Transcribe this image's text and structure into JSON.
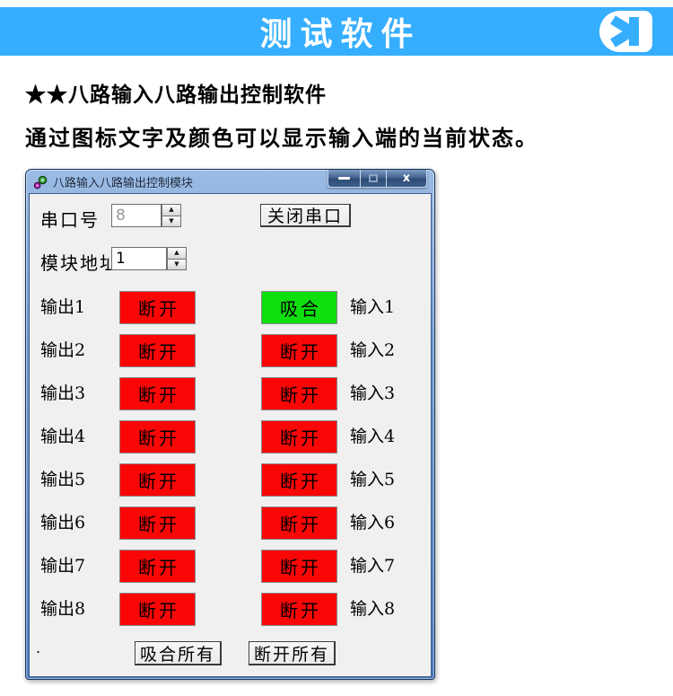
{
  "colors": {
    "header_bg": "#35AEFE",
    "state_on": "#0FDE0F",
    "state_off": "#F90707"
  },
  "header": {
    "title": "测试软件",
    "logo_icon": "mirrored-K-badge"
  },
  "intro": {
    "line1": "★★八路输入八路输出控制软件",
    "line2": "通过图标文字及颜色可以显示输入端的当前状态。"
  },
  "window": {
    "title": "八路输入八路输出控制模块",
    "controls": {
      "minimize": "—",
      "maximize": "□",
      "close": "x"
    },
    "serial_label": "串口号",
    "serial_value": "8",
    "close_serial_button": "关闭串口",
    "module_label": "模块地址",
    "module_value": "1",
    "spin_up": "▲",
    "spin_down": "▼",
    "rows": [
      {
        "output_label": "输出1",
        "output_state": "断开",
        "output_on": false,
        "input_state": "吸合",
        "input_on": true,
        "input_label": "输入1"
      },
      {
        "output_label": "输出2",
        "output_state": "断开",
        "output_on": false,
        "input_state": "断开",
        "input_on": false,
        "input_label": "输入2"
      },
      {
        "output_label": "输出3",
        "output_state": "断开",
        "output_on": false,
        "input_state": "断开",
        "input_on": false,
        "input_label": "输入3"
      },
      {
        "output_label": "输出4",
        "output_state": "断开",
        "output_on": false,
        "input_state": "断开",
        "input_on": false,
        "input_label": "输入4"
      },
      {
        "output_label": "输出5",
        "output_state": "断开",
        "output_on": false,
        "input_state": "断开",
        "input_on": false,
        "input_label": "输入5"
      },
      {
        "output_label": "输出6",
        "output_state": "断开",
        "output_on": false,
        "input_state": "断开",
        "input_on": false,
        "input_label": "输入6"
      },
      {
        "output_label": "输出7",
        "output_state": "断开",
        "output_on": false,
        "input_state": "断开",
        "input_on": false,
        "input_label": "输入7"
      },
      {
        "output_label": "输出8",
        "output_state": "断开",
        "output_on": false,
        "input_state": "断开",
        "input_on": false,
        "input_label": "输入8"
      }
    ],
    "engage_all_button": "吸合所有",
    "release_all_button": "断开所有",
    "footer_dot": "."
  }
}
